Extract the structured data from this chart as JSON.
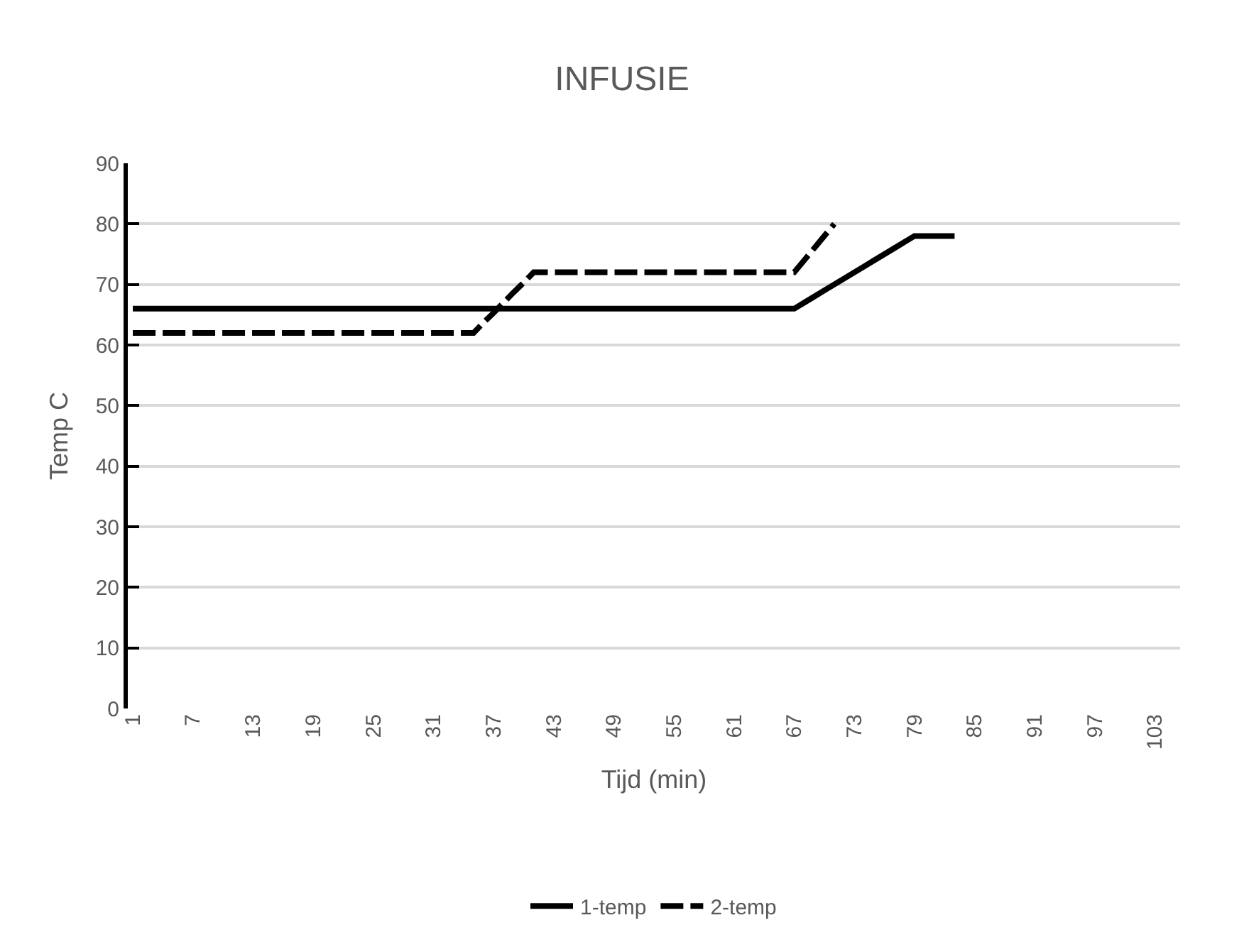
{
  "chart_data": {
    "type": "line",
    "title": "INFUSIE",
    "xlabel": "Tijd (min)",
    "ylabel": "Temp C",
    "categories": [
      "1",
      null,
      null,
      null,
      null,
      null,
      "7",
      null,
      null,
      null,
      null,
      null,
      "13",
      null,
      null,
      null,
      null,
      null,
      "19",
      null,
      null,
      null,
      null,
      null,
      "25",
      null,
      null,
      null,
      null,
      null,
      "31",
      null,
      null,
      null,
      null,
      null,
      "37",
      null,
      null,
      null,
      null,
      null,
      "43",
      null,
      null,
      null,
      null,
      null,
      "49",
      null,
      null,
      null,
      null,
      null,
      "55",
      null,
      null,
      null,
      null,
      null,
      "61",
      null,
      null,
      null,
      null,
      null,
      "67",
      null,
      null,
      null,
      null,
      null,
      "73",
      null,
      null,
      null,
      null,
      null,
      "79",
      null,
      null,
      null,
      null,
      null,
      "85",
      null,
      null,
      null,
      null,
      null,
      "91",
      null,
      null,
      null,
      null,
      null,
      "97",
      null,
      null,
      null,
      null,
      null,
      "103",
      null,
      null
    ],
    "series": [
      {
        "name": "1-temp",
        "color": "#000000",
        "line_style": "solid",
        "values": [
          66,
          66,
          66,
          66,
          66,
          66,
          66,
          66,
          66,
          66,
          66,
          66,
          66,
          66,
          66,
          66,
          66,
          66,
          66,
          66,
          66,
          66,
          66,
          66,
          66,
          66,
          66,
          66,
          66,
          66,
          66,
          66,
          66,
          66,
          66,
          66,
          66,
          66,
          66,
          66,
          66,
          66,
          66,
          66,
          66,
          66,
          66,
          66,
          66,
          66,
          66,
          66,
          66,
          66,
          66,
          66,
          66,
          66,
          66,
          66,
          66,
          66,
          66,
          66,
          66,
          66,
          66,
          67,
          68,
          69,
          70,
          71,
          72,
          73,
          74,
          75,
          76,
          77,
          78,
          78,
          78,
          78,
          78,
          null,
          null,
          null,
          null,
          null,
          null,
          null,
          null,
          null,
          null,
          null,
          null,
          null,
          null,
          null,
          null,
          null,
          null,
          null,
          null,
          null,
          null
        ]
      },
      {
        "name": "2-temp",
        "color": "#000000",
        "line_style": "dashed",
        "values": [
          62,
          62,
          62,
          62,
          62,
          62,
          62,
          62,
          62,
          62,
          62,
          62,
          62,
          62,
          62,
          62,
          62,
          62,
          62,
          62,
          62,
          62,
          62,
          62,
          62,
          62,
          62,
          62,
          62,
          62,
          62,
          62,
          62,
          62,
          62,
          63.7,
          65.3,
          67,
          68.7,
          70.3,
          72,
          72,
          72,
          72,
          72,
          72,
          72,
          72,
          72,
          72,
          72,
          72,
          72,
          72,
          72,
          72,
          72,
          72,
          72,
          72,
          72,
          72,
          72,
          72,
          72,
          72,
          72,
          74,
          76,
          78,
          80,
          null,
          null,
          null,
          null,
          null,
          null,
          null,
          null,
          null,
          null,
          null,
          null,
          null,
          null,
          null,
          null,
          null,
          null,
          null,
          null,
          null,
          null,
          null,
          null,
          null,
          null,
          null,
          null,
          null,
          null,
          null,
          null,
          null,
          null
        ]
      }
    ],
    "ylim": [
      0,
      90
    ],
    "yticks": [
      0,
      10,
      20,
      30,
      40,
      50,
      60,
      70,
      80,
      90
    ],
    "grid": "y",
    "legend": "bottom",
    "marker": "none"
  }
}
